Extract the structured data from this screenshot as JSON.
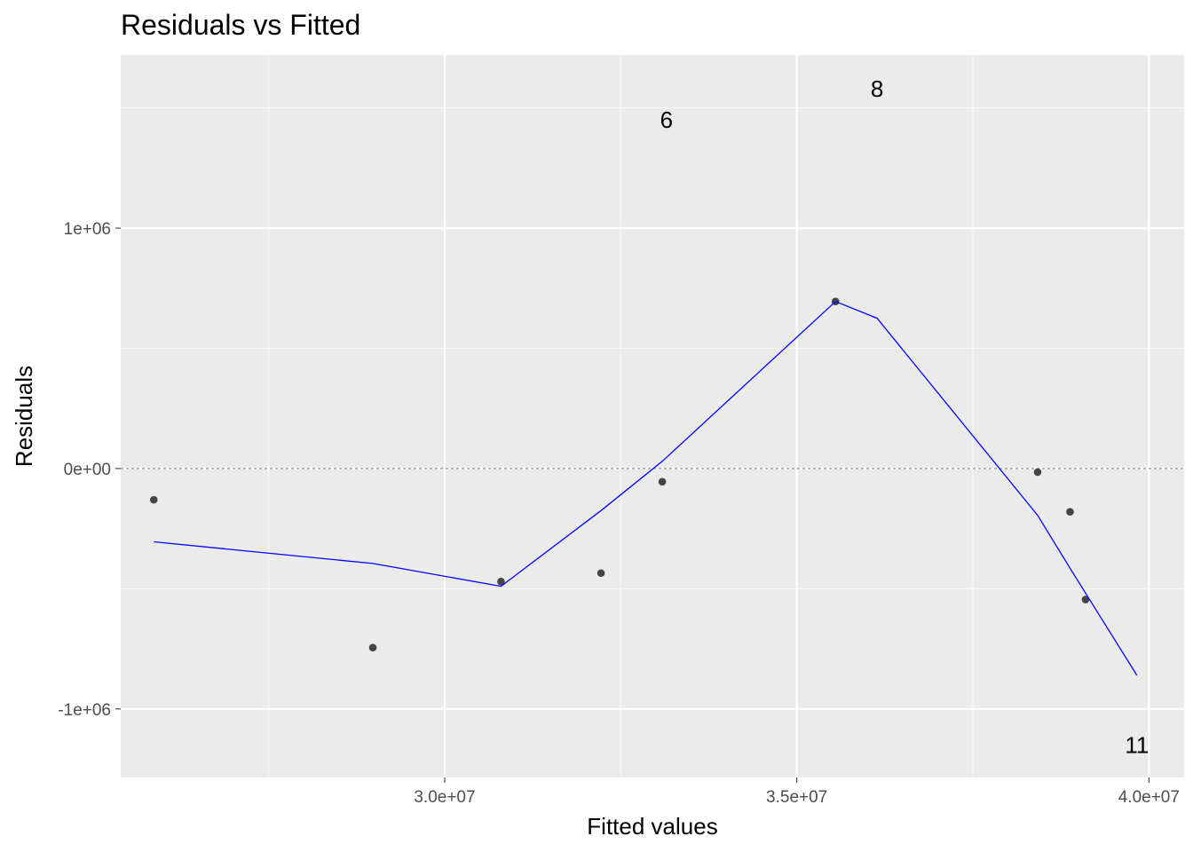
{
  "chart_data": {
    "type": "scatter",
    "title": "Residuals vs Fitted",
    "xlabel": "Fitted values",
    "ylabel": "Residuals",
    "xlim": [
      25400000,
      40500000
    ],
    "ylim": [
      -1285000,
      1720000
    ],
    "x_ticks": [
      {
        "value": 30000000,
        "label": "3.0e+07"
      },
      {
        "value": 35000000,
        "label": "3.5e+07"
      },
      {
        "value": 40000000,
        "label": "4.0e+07"
      }
    ],
    "x_minor": [
      27500000,
      32500000,
      37500000
    ],
    "y_ticks": [
      {
        "value": -1000000,
        "label": "-1e+06"
      },
      {
        "value": 0,
        "label": "0e+00"
      },
      {
        "value": 1000000,
        "label": "1e+06"
      }
    ],
    "y_minor": [
      -500000,
      500000,
      1500000
    ],
    "grid": true,
    "reference_line": {
      "y": 0,
      "style": "dashed",
      "color": "#7f7f7f"
    },
    "points": [
      {
        "x": 25870000,
        "y": -130000
      },
      {
        "x": 28980000,
        "y": -745000
      },
      {
        "x": 30800000,
        "y": -470000
      },
      {
        "x": 32220000,
        "y": -435000
      },
      {
        "x": 33090000,
        "y": -55000
      },
      {
        "x": 33150000,
        "y": 1450000,
        "label": "6"
      },
      {
        "x": 35550000,
        "y": 695000
      },
      {
        "x": 36140000,
        "y": 1580000,
        "label": "8"
      },
      {
        "x": 38420000,
        "y": -15000
      },
      {
        "x": 38880000,
        "y": -180000
      },
      {
        "x": 39100000,
        "y": -545000
      },
      {
        "x": 39830000,
        "y": -1150000,
        "label": "11"
      }
    ],
    "smooth_line": {
      "color": "#0000ff",
      "points": [
        {
          "x": 25870000,
          "y": -305000
        },
        {
          "x": 28980000,
          "y": -395000
        },
        {
          "x": 30800000,
          "y": -490000
        },
        {
          "x": 32220000,
          "y": -175000
        },
        {
          "x": 33090000,
          "y": 30000
        },
        {
          "x": 35550000,
          "y": 695000
        },
        {
          "x": 36140000,
          "y": 625000
        },
        {
          "x": 38420000,
          "y": -195000
        },
        {
          "x": 38880000,
          "y": -415000
        },
        {
          "x": 39830000,
          "y": -860000
        }
      ]
    },
    "colors": {
      "panel": "#ebebeb",
      "grid_major": "#ffffff",
      "grid_minor": "#f7f7f7",
      "point": "#444444"
    }
  }
}
